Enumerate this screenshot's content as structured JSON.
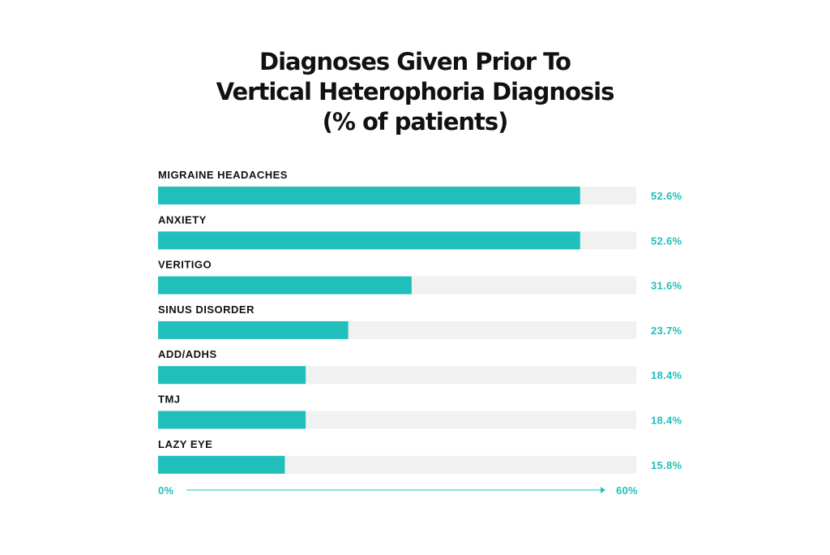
{
  "colors": {
    "bar": "#21bfbb",
    "track": "#f1f1f1",
    "accent_text": "#21bfbb",
    "label_text": "#111111"
  },
  "chart_data": {
    "type": "bar",
    "orientation": "horizontal",
    "title_lines": [
      "Diagnoses Given Prior To",
      "Vertical Heterophoria Diagnosis",
      "(% of patients)"
    ],
    "categories": [
      "MIGRAINE HEADACHES",
      "ANXIETY",
      "VERITIGO",
      "SINUS DISORDER",
      "ADD/ADHS",
      "TMJ",
      "LAZY EYE"
    ],
    "values": [
      52.6,
      52.6,
      31.6,
      23.7,
      18.4,
      18.4,
      15.8
    ],
    "value_labels": [
      "52.6%",
      "52.6%",
      "31.6%",
      "23.7%",
      "18.4%",
      "18.4%",
      "15.8%"
    ],
    "xlim": [
      0,
      60
    ],
    "axis_min_label": "0%",
    "axis_max_label": "60%",
    "grid": false,
    "legend": "none"
  }
}
